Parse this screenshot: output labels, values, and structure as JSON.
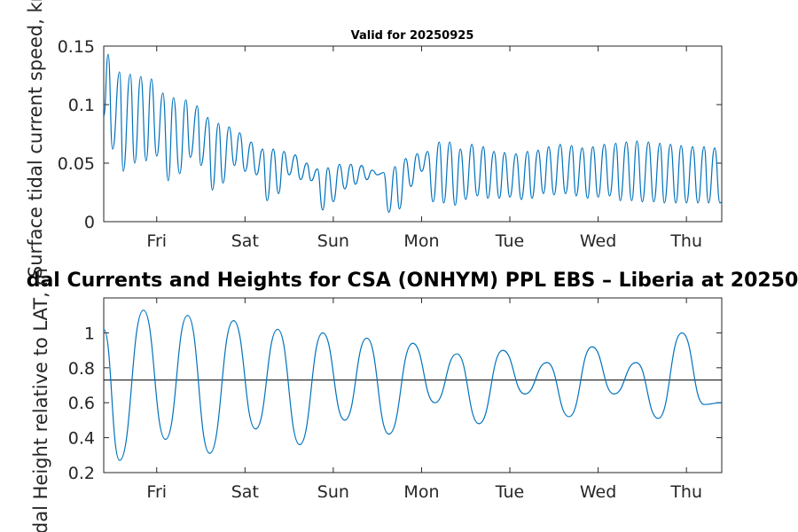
{
  "chart_data": [
    {
      "type": "line",
      "title": "Valid for 20250925",
      "ylabel": "Surface tidal current speed, kn",
      "xlabel": "",
      "ylim": [
        0,
        0.15
      ],
      "yticks": [
        "0",
        "0.05",
        "0.1",
        "0.15"
      ],
      "yticks_values": [
        0,
        0.05,
        0.1,
        0.15
      ],
      "xticks": [
        "Fri",
        "Sat",
        "Sun",
        "Mon",
        "Tue",
        "Wed",
        "Thu"
      ],
      "xticks_day": [
        1,
        2,
        3,
        4,
        5,
        6,
        7
      ],
      "xlim_day": [
        0.4,
        7.4
      ],
      "grid": false,
      "color": "#0072bd",
      "series": [
        {
          "x_day": [
            0.4,
            0.45,
            0.5,
            0.58,
            0.62,
            0.7,
            0.75,
            0.82,
            0.88,
            0.94,
            1.0,
            1.07,
            1.13,
            1.19,
            1.26,
            1.33,
            1.38,
            1.46,
            1.5,
            1.58,
            1.63,
            1.7,
            1.75,
            1.82,
            1.88,
            1.94,
            2.0,
            2.07,
            2.13,
            2.2,
            2.25,
            2.32,
            2.38,
            2.44,
            2.5,
            2.57,
            2.63,
            2.7,
            2.75,
            2.82,
            2.88,
            2.94,
            3.0,
            3.07,
            3.13,
            3.2,
            3.25,
            3.32,
            3.38,
            3.44,
            3.5,
            3.57,
            3.63,
            3.7,
            3.75,
            3.82,
            3.88,
            3.95,
            4.0,
            4.07,
            4.13,
            4.2,
            4.25,
            4.32,
            4.38,
            4.44,
            4.5,
            4.57,
            4.63,
            4.7,
            4.75,
            4.82,
            4.88,
            4.94,
            5.0,
            5.07,
            5.13,
            5.2,
            5.25,
            5.32,
            5.38,
            5.44,
            5.5,
            5.57,
            5.63,
            5.7,
            5.75,
            5.82,
            5.88,
            5.94,
            6.0,
            6.07,
            6.13,
            6.2,
            6.25,
            6.32,
            6.38,
            6.44,
            6.5,
            6.57,
            6.63,
            6.7,
            6.75,
            6.82,
            6.88,
            6.94,
            7.0,
            7.07,
            7.13,
            7.2,
            7.25,
            7.32,
            7.38,
            7.4
          ],
          "values": [
            0.09,
            0.143,
            0.062,
            0.128,
            0.043,
            0.126,
            0.05,
            0.124,
            0.052,
            0.122,
            0.056,
            0.11,
            0.035,
            0.106,
            0.041,
            0.104,
            0.055,
            0.099,
            0.048,
            0.089,
            0.027,
            0.084,
            0.033,
            0.081,
            0.048,
            0.076,
            0.043,
            0.068,
            0.04,
            0.062,
            0.018,
            0.062,
            0.024,
            0.06,
            0.04,
            0.057,
            0.036,
            0.05,
            0.035,
            0.045,
            0.01,
            0.046,
            0.017,
            0.049,
            0.028,
            0.049,
            0.032,
            0.048,
            0.036,
            0.044,
            0.04,
            0.042,
            0.008,
            0.047,
            0.011,
            0.054,
            0.03,
            0.058,
            0.043,
            0.06,
            0.017,
            0.068,
            0.016,
            0.068,
            0.014,
            0.062,
            0.019,
            0.066,
            0.022,
            0.064,
            0.02,
            0.06,
            0.02,
            0.059,
            0.021,
            0.058,
            0.019,
            0.06,
            0.02,
            0.061,
            0.024,
            0.064,
            0.023,
            0.066,
            0.024,
            0.065,
            0.022,
            0.063,
            0.02,
            0.064,
            0.021,
            0.066,
            0.022,
            0.067,
            0.018,
            0.068,
            0.018,
            0.069,
            0.017,
            0.068,
            0.017,
            0.067,
            0.016,
            0.066,
            0.016,
            0.065,
            0.016,
            0.064,
            0.016,
            0.064,
            0.016,
            0.063,
            0.016,
            0.017
          ]
        }
      ]
    },
    {
      "type": "line",
      "title": "dal Currents and Heights for CSA (ONHYM) PPL EBS  – Liberia at 20250",
      "ylabel": "idal Height relative to LAT, m",
      "xlabel": "",
      "ylim": [
        0.2,
        1.2
      ],
      "yticks": [
        "0.2",
        "0.4",
        "0.6",
        "0.8",
        "1"
      ],
      "yticks_values": [
        0.2,
        0.4,
        0.6,
        0.8,
        1.0
      ],
      "xticks": [
        "Fri",
        "Sat",
        "Sun",
        "Mon",
        "Tue",
        "Wed",
        "Thu"
      ],
      "xticks_day": [
        1,
        2,
        3,
        4,
        5,
        6,
        7
      ],
      "xlim_day": [
        0.4,
        7.4
      ],
      "grid": false,
      "color": "#0072bd",
      "reference_line": {
        "value": 0.73,
        "color": "#000000"
      },
      "series": [
        {
          "x_day": [
            0.4,
            0.58,
            0.85,
            1.1,
            1.35,
            1.6,
            1.87,
            2.12,
            2.37,
            2.62,
            2.88,
            3.13,
            3.38,
            3.63,
            3.9,
            4.15,
            4.4,
            4.65,
            4.92,
            5.17,
            5.42,
            5.67,
            5.93,
            6.18,
            6.43,
            6.68,
            6.95,
            7.2,
            7.4
          ],
          "values": [
            1.02,
            0.27,
            1.13,
            0.39,
            1.1,
            0.31,
            1.07,
            0.45,
            1.02,
            0.36,
            1.0,
            0.5,
            0.97,
            0.42,
            0.94,
            0.6,
            0.88,
            0.48,
            0.9,
            0.65,
            0.83,
            0.52,
            0.92,
            0.65,
            0.83,
            0.51,
            1.0,
            0.59,
            0.6
          ]
        }
      ]
    }
  ]
}
